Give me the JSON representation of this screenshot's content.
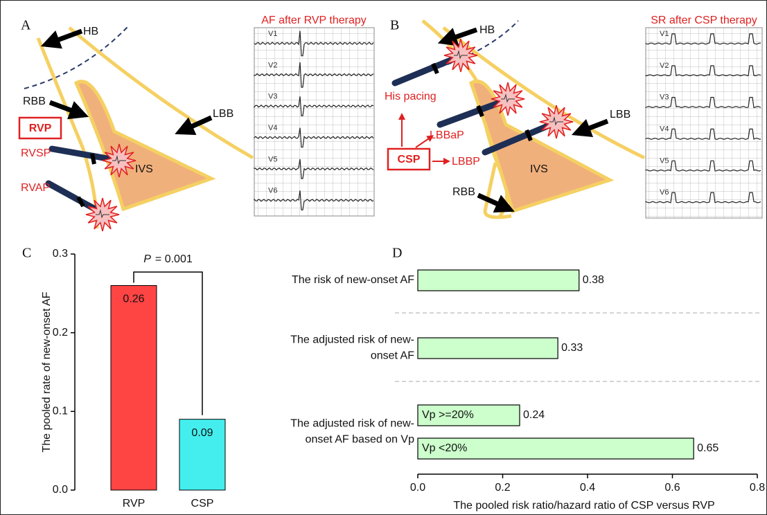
{
  "diagram_a": {
    "label": "A",
    "ecg_title": "AF after RVP therapy",
    "leads": [
      "V1",
      "V2",
      "V3",
      "V4",
      "V5",
      "V6"
    ],
    "hb": "HB",
    "rbb": "RBB",
    "lbb": "LBB",
    "rvp": "RVP",
    "rvsp": "RVSP",
    "rvap": "RVAP",
    "ivs": "IVS"
  },
  "diagram_b": {
    "label": "B",
    "ecg_title": "SR after CSP therapy",
    "leads": [
      "V1",
      "V2",
      "V3",
      "V4",
      "V5",
      "V6"
    ],
    "hb": "HB",
    "his_pacing": "His pacing",
    "lbbap": "LBBaP",
    "csp": "CSP",
    "lbbp": "LBBP",
    "lbb": "LBB",
    "ivs": "IVS",
    "rbb": "RBB"
  },
  "chart_data": [
    {
      "type": "bar",
      "panel_label": "C",
      "ylabel": "The pooled rate of new-onset AF",
      "categories": [
        "RVP",
        "CSP"
      ],
      "values": [
        0.26,
        0.09
      ],
      "colors": [
        "#ff4444",
        "#44eeee"
      ],
      "ylim": [
        0,
        0.3
      ],
      "yticks": [
        {
          "value": 0,
          "label": "0.0"
        },
        0.1,
        0.2,
        0.3
      ],
      "annotation": [
        "P",
        "= 0.001"
      ]
    },
    {
      "type": "hbar",
      "panel_label": "D",
      "xlabel": "The pooled risk ratio/hazard ratio of CSP versus RVP",
      "color": "#ccffcc",
      "groups": [
        {
          "label": [
            "The risk of new-onset AF"
          ],
          "bars": [
            {
              "value": 0.38
            }
          ]
        },
        {
          "label": [
            "The adjusted risk of new-",
            "onset AF"
          ],
          "bars": [
            {
              "value": 0.33
            }
          ]
        },
        {
          "label": [
            "The adjusted risk of new-",
            "onset AF based on Vp"
          ],
          "bars": [
            {
              "name": "Vp >=20%",
              "value": 0.24
            },
            {
              "name": "Vp <20%",
              "value": 0.65
            }
          ]
        }
      ],
      "xlim": [
        0,
        0.8
      ],
      "xticks": [
        {
          "value": 0,
          "label": "0.0"
        },
        0.2,
        0.4,
        0.6,
        0.8
      ]
    }
  ]
}
